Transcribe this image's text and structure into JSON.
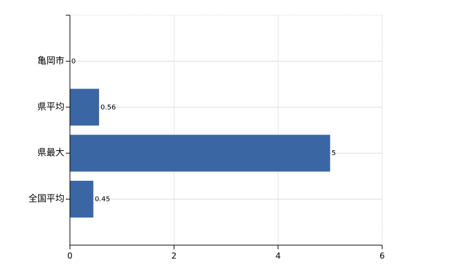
{
  "chart_data": {
    "type": "bar",
    "orientation": "horizontal",
    "categories": [
      "亀岡市",
      "県平均",
      "県最大",
      "全国平均"
    ],
    "values": [
      0,
      0.56,
      5,
      0.45
    ],
    "color": "#3a67a3",
    "xlim": [
      0,
      6
    ],
    "xticks": [
      0,
      2,
      4,
      6
    ],
    "grid": true
  }
}
